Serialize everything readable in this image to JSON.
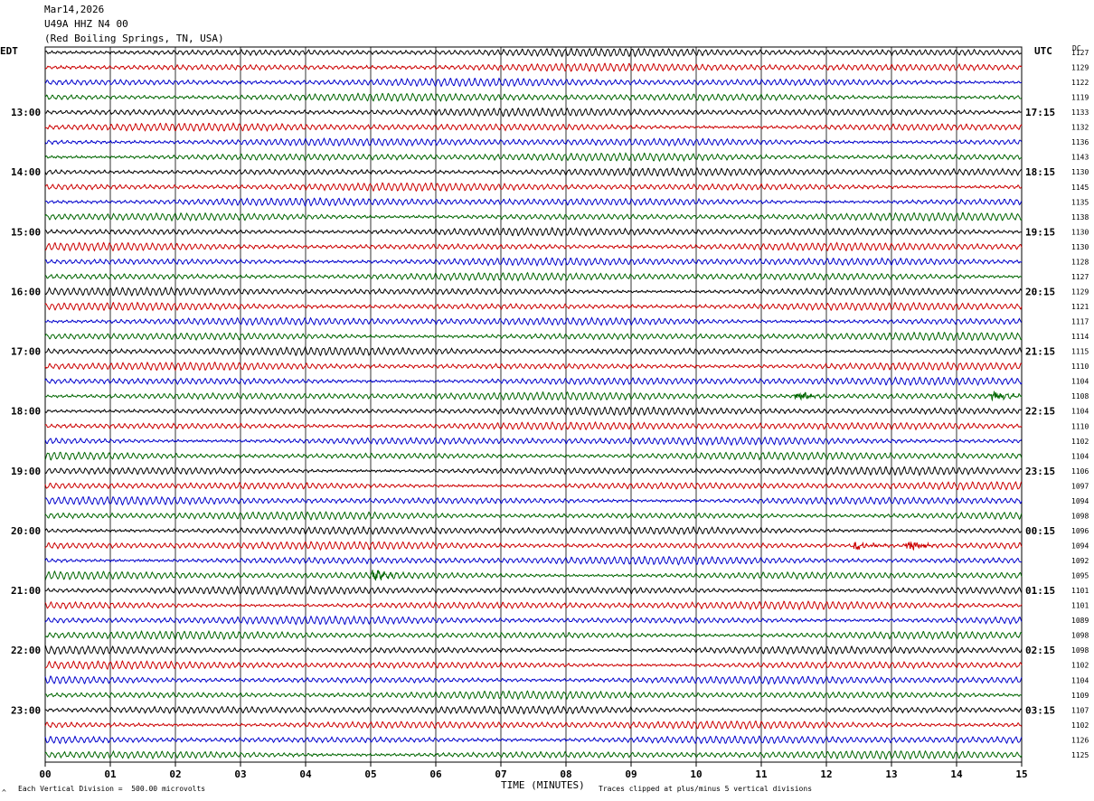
{
  "header": {
    "date": "Mar14,2026",
    "station": "U49A HHZ N4 00",
    "location": "(Red Boiling Springs, TN, USA)"
  },
  "left_timezone": "EDT",
  "right_timezone": "UTC",
  "dc_label": "DC",
  "footer": {
    "scale_note": "Each Vertical Division =  500.00 microvolts",
    "clip_note": "Traces clipped at plus/minus 5 vertical divisions",
    "corner_mark": "^"
  },
  "colors": {
    "trace_cycle": [
      "#000000",
      "#cc0000",
      "#0000cc",
      "#006600"
    ],
    "grid": "#000000"
  },
  "chart_data": {
    "type": "line",
    "title": "",
    "xlabel": "TIME (MINUTES)",
    "ylabel": "",
    "xlim": [
      0,
      15
    ],
    "x_ticks": [
      "00",
      "01",
      "02",
      "03",
      "04",
      "05",
      "06",
      "07",
      "08",
      "09",
      "10",
      "11",
      "12",
      "13",
      "14",
      "15"
    ],
    "rows_per_hour": 4,
    "row_count": 48,
    "left_hour_labels": [
      "13:00",
      "14:00",
      "15:00",
      "16:00",
      "17:00",
      "18:00",
      "19:00",
      "20:00",
      "21:00",
      "22:00",
      "23:00"
    ],
    "right_hour_labels": [
      "17:15",
      "18:15",
      "19:15",
      "20:15",
      "21:15",
      "22:15",
      "23:15",
      "00:15",
      "01:15",
      "02:15",
      "03:15"
    ],
    "dc_offsets": [
      1127,
      1129,
      1122,
      1119,
      1133,
      1132,
      1136,
      1143,
      1130,
      1145,
      1135,
      1138,
      1130,
      1130,
      1128,
      1127,
      1129,
      1121,
      1117,
      1114,
      1115,
      1110,
      1104,
      1108,
      1104,
      1110,
      1102,
      1104,
      1106,
      1097,
      1094,
      1098,
      1096,
      1094,
      1092,
      1095,
      1101,
      1101,
      1089,
      1098,
      1098,
      1102,
      1104,
      1109,
      1107,
      1102,
      1126,
      1125
    ],
    "events": [
      {
        "row": 23,
        "minute": 11.6,
        "note": "small burst"
      },
      {
        "row": 23,
        "minute": 14.6,
        "note": "small burst"
      },
      {
        "row": 33,
        "minute": 12.5,
        "note": "small burst"
      },
      {
        "row": 33,
        "minute": 13.3,
        "note": "small burst"
      },
      {
        "row": 35,
        "minute": 5.1,
        "note": "small burst"
      }
    ]
  }
}
